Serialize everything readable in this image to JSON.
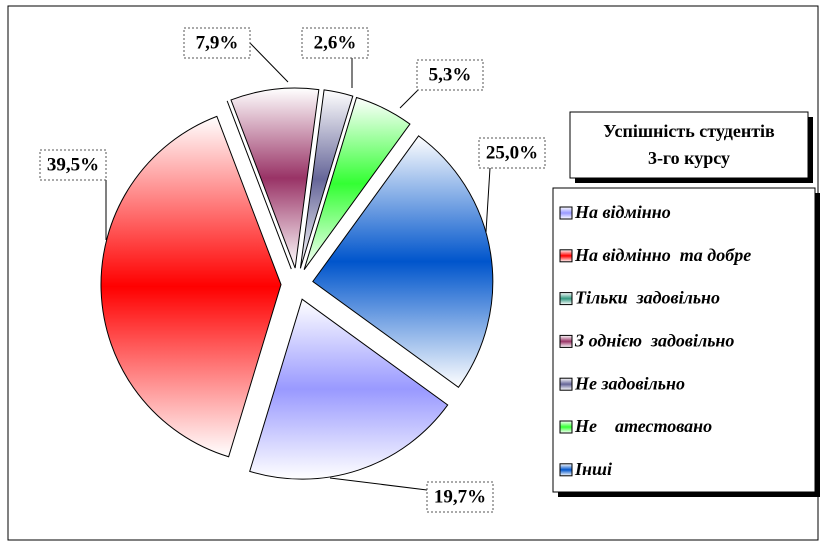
{
  "chart_data": {
    "type": "pie",
    "title": [
      "Успішність студентів",
      "3-го курсу"
    ],
    "categories": [
      "На відмінно",
      "На відмінно  та добре",
      "Тільки  задовільно",
      "З однією  задовільно",
      "Не задовільно",
      "Не    атестовано",
      "Інші"
    ],
    "values": [
      19.7,
      39.5,
      0,
      7.9,
      2.6,
      5.3,
      25.0
    ],
    "value_labels": [
      "19,7%",
      "39,5%",
      null,
      "7,9%",
      "2,6%",
      "5,3%",
      "25,0%"
    ],
    "colors": [
      "#9999ff",
      "#ff0000",
      "#339980",
      "#993366",
      "#666699",
      "#33ff33",
      "#0055cc"
    ],
    "legend": "right"
  }
}
